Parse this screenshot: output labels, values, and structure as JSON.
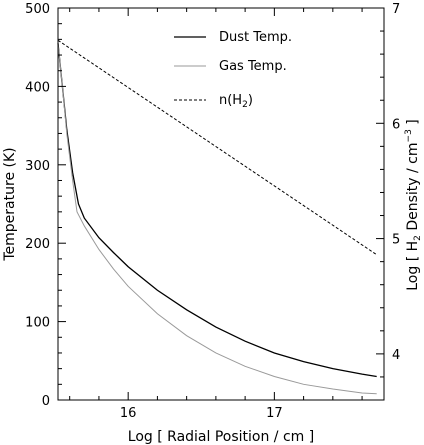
{
  "chart_data": {
    "type": "line",
    "xlabel": "Log [ Radial Position / cm ]",
    "ylabel_left": "Temperature (K)",
    "ylabel_right": {
      "prefix": "Log [ H",
      "sub": "2",
      "mid": " Density / cm",
      "sup": "−3",
      "suffix": " ]"
    },
    "xlim": [
      15.52,
      17.75
    ],
    "ylim_left": [
      0,
      500
    ],
    "ylim_right": [
      3.6,
      7.0
    ],
    "x_ticks": [
      16,
      17
    ],
    "x_tick_labels": [
      "16",
      "17"
    ],
    "y_ticks_left": [
      0,
      100,
      200,
      300,
      400,
      500
    ],
    "y_tick_labels_left": [
      "0",
      "100",
      "200",
      "300",
      "400",
      "500"
    ],
    "y_ticks_right": [
      4,
      5,
      6,
      7
    ],
    "y_tick_labels_right": [
      "4",
      "5",
      "6",
      "7"
    ],
    "grid": false,
    "legend_position": "top-center",
    "series": [
      {
        "name": "Dust Temp.",
        "axis": "left",
        "style": "solid",
        "color": "#000000",
        "x": [
          15.52,
          15.55,
          15.58,
          15.62,
          15.66,
          15.7,
          15.8,
          15.9,
          16.0,
          16.2,
          16.4,
          16.6,
          16.8,
          17.0,
          17.2,
          17.4,
          17.6,
          17.7
        ],
        "y": [
          455,
          400,
          345,
          290,
          250,
          232,
          207,
          188,
          170,
          140,
          115,
          93,
          75,
          60,
          49,
          40,
          33,
          30
        ]
      },
      {
        "name": "Gas Temp.",
        "axis": "left",
        "style": "solid",
        "color": "#9a9a9a",
        "x": [
          15.52,
          15.55,
          15.58,
          15.62,
          15.65,
          15.7,
          15.8,
          15.9,
          16.0,
          16.2,
          16.4,
          16.6,
          16.8,
          17.0,
          17.2,
          17.4,
          17.6,
          17.7
        ],
        "y": [
          455,
          400,
          340,
          280,
          240,
          222,
          192,
          167,
          145,
          110,
          82,
          60,
          43,
          30,
          20,
          14,
          9,
          8
        ]
      },
      {
        "name": "n(H2)",
        "axis": "right",
        "style": "dashed",
        "color": "#000000",
        "x": [
          15.52,
          17.7
        ],
        "y": [
          6.72,
          4.86
        ]
      }
    ],
    "legend": [
      {
        "label": "Dust Temp.",
        "style": "solid",
        "color": "#000000"
      },
      {
        "label": "Gas Temp.",
        "style": "solid",
        "color": "#9a9a9a"
      },
      {
        "label_prefix": "n(H",
        "label_sub": "2",
        "label_suffix": ")",
        "style": "dashed",
        "color": "#000000"
      }
    ]
  }
}
